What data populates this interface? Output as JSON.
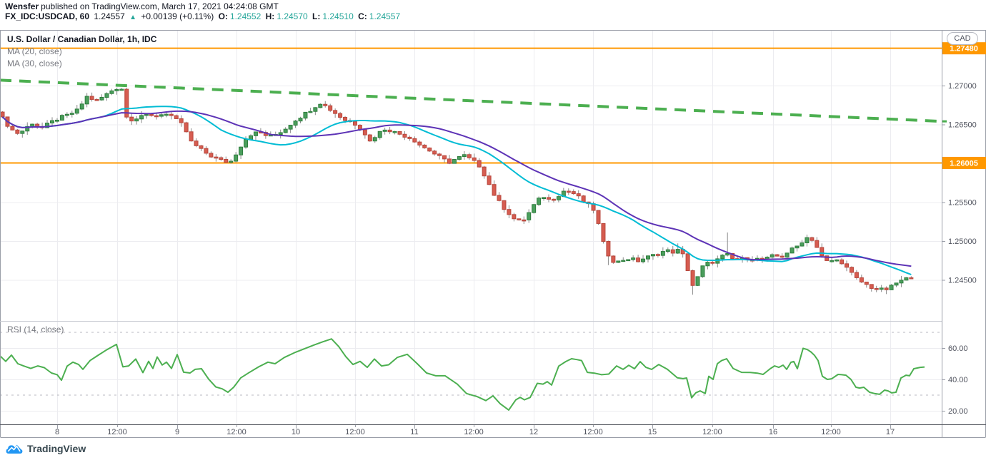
{
  "header": {
    "author": "Wensfer",
    "published": "published on TradingView.com, March 17, 2021 04:24:08 GMT",
    "symbol": "FX_IDC:USDCAD, 60",
    "last_price": "1.24557",
    "up_arrow": "▲",
    "change": "+0.00139 (+0.11%)",
    "ohlc": [
      {
        "label": "O:",
        "value": "1.24552"
      },
      {
        "label": "H:",
        "value": "1.24570"
      },
      {
        "label": "L:",
        "value": "1.24510"
      },
      {
        "label": "C:",
        "value": "1.24557"
      }
    ]
  },
  "price_axis": {
    "currency": "CAD"
  },
  "footer": {
    "brand": "TradingView"
  },
  "colors": {
    "up_fill": "#4a9e5c",
    "up_border": "#2e7d3d",
    "down_fill": "#d65c50",
    "down_border": "#b7473c",
    "wick": "#8a8a8a",
    "ma20": "#00bcd4",
    "ma30": "#5d33b6",
    "trendline": "#4caf50",
    "level": "#ff9800",
    "rsi": "#4caf50",
    "grid": "#ececf0",
    "frame": "#9a9ea8",
    "axis_text": "#50535e",
    "band_dash": "#b8bac1",
    "teal": "#26a69a",
    "logo_blue": "#2196f3"
  },
  "chart_data": [
    {
      "type": "candlestick",
      "title": "U.S. Dollar / Canadian Dollar, 1h, IDC",
      "legend": [
        "MA (20, close)",
        "MA (30, close)"
      ],
      "currency": "CAD",
      "ylim": [
        1.23972,
        1.27716
      ],
      "y_ticks": [
        {
          "label": "1.27000",
          "price": 1.27
        },
        {
          "label": "1.26500",
          "price": 1.265
        },
        {
          "label": "1.25500",
          "price": 1.255
        },
        {
          "label": "1.25000",
          "price": 1.25
        },
        {
          "label": "1.24500",
          "price": 1.245
        }
      ],
      "levels": [
        {
          "label": "1.27480",
          "price": 1.2748
        },
        {
          "label": "1.26005",
          "price": 1.26005
        }
      ],
      "trendline": {
        "from": [
          0,
          1.2707
        ],
        "to": [
          1318,
          1.2654
        ],
        "style": "dashed"
      },
      "moving_averages": [
        {
          "name": "MA (20, close)",
          "period": 20
        },
        {
          "name": "MA (30, close)",
          "period": 30
        }
      ],
      "bars": 184,
      "bar_step": 6.95,
      "close_path": [
        [
          0,
          1.2662
        ],
        [
          10,
          1.265
        ],
        [
          22,
          1.2638
        ],
        [
          32,
          1.2642
        ],
        [
          45,
          1.2652
        ],
        [
          58,
          1.2645
        ],
        [
          70,
          1.2652
        ],
        [
          82,
          1.2658
        ],
        [
          95,
          1.2662
        ],
        [
          108,
          1.2668
        ],
        [
          122,
          1.2686
        ],
        [
          135,
          1.268
        ],
        [
          148,
          1.2688
        ],
        [
          160,
          1.2696
        ],
        [
          170,
          1.2698
        ],
        [
          176,
          1.266
        ],
        [
          186,
          1.2656
        ],
        [
          198,
          1.2662
        ],
        [
          210,
          1.266
        ],
        [
          222,
          1.2662
        ],
        [
          235,
          1.2665
        ],
        [
          247,
          1.2655
        ],
        [
          257,
          1.2648
        ],
        [
          267,
          1.2628
        ],
        [
          280,
          1.2618
        ],
        [
          294,
          1.261
        ],
        [
          308,
          1.2604
        ],
        [
          322,
          1.2601
        ],
        [
          332,
          1.2615
        ],
        [
          342,
          1.263
        ],
        [
          352,
          1.2638
        ],
        [
          364,
          1.264
        ],
        [
          376,
          1.2634
        ],
        [
          388,
          1.2638
        ],
        [
          400,
          1.2645
        ],
        [
          412,
          1.2655
        ],
        [
          424,
          1.2662
        ],
        [
          436,
          1.267
        ],
        [
          448,
          1.2678
        ],
        [
          458,
          1.2672
        ],
        [
          470,
          1.2664
        ],
        [
          482,
          1.2656
        ],
        [
          495,
          1.2652
        ],
        [
          508,
          1.2642
        ],
        [
          518,
          1.2628
        ],
        [
          528,
          1.2638
        ],
        [
          540,
          1.2645
        ],
        [
          552,
          1.264
        ],
        [
          565,
          1.2636
        ],
        [
          578,
          1.2631
        ],
        [
          590,
          1.2622
        ],
        [
          602,
          1.2616
        ],
        [
          615,
          1.2608
        ],
        [
          628,
          1.2601
        ],
        [
          638,
          1.2606
        ],
        [
          650,
          1.261
        ],
        [
          660,
          1.2604
        ],
        [
          670,
          1.2598
        ],
        [
          680,
          1.2582
        ],
        [
          690,
          1.2562
        ],
        [
          700,
          1.2548
        ],
        [
          710,
          1.2538
        ],
        [
          720,
          1.2528
        ],
        [
          730,
          1.2524
        ],
        [
          740,
          1.2536
        ],
        [
          750,
          1.255
        ],
        [
          760,
          1.2558
        ],
        [
          770,
          1.2552
        ],
        [
          780,
          1.2558
        ],
        [
          790,
          1.2565
        ],
        [
          800,
          1.2563
        ],
        [
          810,
          1.2556
        ],
        [
          820,
          1.2548
        ],
        [
          830,
          1.2542
        ],
        [
          838,
          1.252
        ],
        [
          846,
          1.2492
        ],
        [
          854,
          1.2478
        ],
        [
          862,
          1.2472
        ],
        [
          872,
          1.2476
        ],
        [
          882,
          1.2478
        ],
        [
          892,
          1.2474
        ],
        [
          902,
          1.2478
        ],
        [
          912,
          1.2481
        ],
        [
          922,
          1.2484
        ],
        [
          932,
          1.2488
        ],
        [
          942,
          1.2486
        ],
        [
          952,
          1.2489
        ],
        [
          960,
          1.2474
        ],
        [
          968,
          1.2441
        ],
        [
          976,
          1.2452
        ],
        [
          984,
          1.2468
        ],
        [
          992,
          1.2472
        ],
        [
          1000,
          1.2474
        ],
        [
          1008,
          1.2478
        ],
        [
          1016,
          1.2484
        ],
        [
          1024,
          1.2477
        ],
        [
          1034,
          1.2476
        ],
        [
          1046,
          1.2478
        ],
        [
          1058,
          1.2477
        ],
        [
          1070,
          1.2476
        ],
        [
          1082,
          1.2481
        ],
        [
          1094,
          1.248
        ],
        [
          1104,
          1.2487
        ],
        [
          1114,
          1.2492
        ],
        [
          1124,
          1.2501
        ],
        [
          1132,
          1.2506
        ],
        [
          1140,
          1.2499
        ],
        [
          1148,
          1.2482
        ],
        [
          1158,
          1.2473
        ],
        [
          1168,
          1.2476
        ],
        [
          1178,
          1.2473
        ],
        [
          1188,
          1.2462
        ],
        [
          1198,
          1.2452
        ],
        [
          1208,
          1.2446
        ],
        [
          1218,
          1.2441
        ],
        [
          1228,
          1.2438
        ],
        [
          1238,
          1.2437
        ],
        [
          1246,
          1.244
        ],
        [
          1254,
          1.2446
        ],
        [
          1262,
          1.2449
        ],
        [
          1270,
          1.2452
        ],
        [
          1277,
          1.24557
        ]
      ],
      "spikes": [
        {
          "x": 848,
          "low": 1.2469
        },
        {
          "x": 952,
          "high": 1.2497
        },
        {
          "x": 968,
          "low": 1.2431
        },
        {
          "x": 1016,
          "high": 1.2511
        }
      ],
      "x_axis": {
        "labels": [
          {
            "text": "8",
            "x": 80,
            "major": true
          },
          {
            "text": "12:00",
            "x": 164,
            "major": false
          },
          {
            "text": "9",
            "x": 248,
            "major": true
          },
          {
            "text": "12:00",
            "x": 331,
            "major": false
          },
          {
            "text": "10",
            "x": 414,
            "major": true
          },
          {
            "text": "12:00",
            "x": 497,
            "major": false
          },
          {
            "text": "11",
            "x": 580,
            "major": true
          },
          {
            "text": "12:00",
            "x": 663,
            "major": false
          },
          {
            "text": "12",
            "x": 747,
            "major": true
          },
          {
            "text": "12:00",
            "x": 830,
            "major": false
          },
          {
            "text": "15",
            "x": 913,
            "major": true
          },
          {
            "text": "12:00",
            "x": 997,
            "major": false
          },
          {
            "text": "16",
            "x": 1082,
            "major": true
          },
          {
            "text": "12:00",
            "x": 1163,
            "major": false
          },
          {
            "text": "17",
            "x": 1246,
            "major": true
          }
        ]
      }
    },
    {
      "type": "line",
      "label": "RSI (14, close)",
      "ylim": [
        11.8,
        77.3
      ],
      "y_ticks": [
        {
          "label": "60.00",
          "value": 60
        },
        {
          "label": "40.00",
          "value": 40
        },
        {
          "label": "20.00",
          "value": 20
        }
      ],
      "bands": [
        70,
        30
      ],
      "points": [
        [
          0,
          55
        ],
        [
          8,
          51.5
        ],
        [
          16,
          55.5
        ],
        [
          25,
          50
        ],
        [
          33,
          48.6
        ],
        [
          43,
          47
        ],
        [
          53,
          48.6
        ],
        [
          62,
          47.5
        ],
        [
          72,
          44.1
        ],
        [
          80,
          43
        ],
        [
          86,
          39.5
        ],
        [
          94,
          48.5
        ],
        [
          102,
          51
        ],
        [
          110,
          49.5
        ],
        [
          116,
          46.4
        ],
        [
          126,
          52
        ],
        [
          136,
          55
        ],
        [
          148,
          58.5
        ],
        [
          163,
          62.3
        ],
        [
          172,
          48
        ],
        [
          180,
          48.6
        ],
        [
          190,
          53
        ],
        [
          200,
          44.3
        ],
        [
          208,
          51.5
        ],
        [
          214,
          47
        ],
        [
          220,
          54.3
        ],
        [
          227,
          49.2
        ],
        [
          233,
          51
        ],
        [
          240,
          47
        ],
        [
          248,
          55.8
        ],
        [
          257,
          44.6
        ],
        [
          266,
          44.1
        ],
        [
          273,
          46.4
        ],
        [
          282,
          46.8
        ],
        [
          292,
          40.2
        ],
        [
          302,
          35.2
        ],
        [
          311,
          34
        ],
        [
          319,
          31.8
        ],
        [
          327,
          35
        ],
        [
          337,
          41
        ],
        [
          348,
          44.2
        ],
        [
          362,
          48
        ],
        [
          375,
          51
        ],
        [
          385,
          50
        ],
        [
          398,
          54
        ],
        [
          412,
          57
        ],
        [
          426,
          59.5
        ],
        [
          440,
          62
        ],
        [
          452,
          64
        ],
        [
          464,
          65.8
        ],
        [
          474,
          61
        ],
        [
          484,
          54.5
        ],
        [
          494,
          49.5
        ],
        [
          504,
          51.5
        ],
        [
          514,
          47.7
        ],
        [
          524,
          53
        ],
        [
          534,
          48.6
        ],
        [
          544,
          49.3
        ],
        [
          556,
          54
        ],
        [
          570,
          56
        ],
        [
          584,
          50
        ],
        [
          597,
          44.1
        ],
        [
          610,
          42.3
        ],
        [
          623,
          42.3
        ],
        [
          640,
          37
        ],
        [
          653,
          31
        ],
        [
          668,
          29
        ],
        [
          680,
          26.5
        ],
        [
          690,
          29.5
        ],
        [
          700,
          24.5
        ],
        [
          712,
          20.5
        ],
        [
          722,
          27
        ],
        [
          728,
          28.6
        ],
        [
          734,
          27
        ],
        [
          742,
          28.5
        ],
        [
          752,
          37.5
        ],
        [
          760,
          37
        ],
        [
          766,
          38.6
        ],
        [
          772,
          36.4
        ],
        [
          782,
          48.5
        ],
        [
          792,
          51.4
        ],
        [
          800,
          53.2
        ],
        [
          808,
          52.6
        ],
        [
          814,
          52
        ],
        [
          822,
          44.5
        ],
        [
          832,
          44
        ],
        [
          842,
          43
        ],
        [
          852,
          43.4
        ],
        [
          863,
          48.6
        ],
        [
          872,
          46.4
        ],
        [
          880,
          49
        ],
        [
          888,
          46.8
        ],
        [
          896,
          51.3
        ],
        [
          904,
          47.7
        ],
        [
          912,
          46.4
        ],
        [
          922,
          49.5
        ],
        [
          934,
          46.5
        ],
        [
          948,
          41
        ],
        [
          956,
          40.5
        ],
        [
          961,
          40.9
        ],
        [
          968,
          28.3
        ],
        [
          974,
          31.5
        ],
        [
          980,
          32.7
        ],
        [
          987,
          31
        ],
        [
          992,
          42
        ],
        [
          998,
          40
        ],
        [
          1004,
          50
        ],
        [
          1010,
          52
        ],
        [
          1017,
          53.2
        ],
        [
          1026,
          47
        ],
        [
          1038,
          44.5
        ],
        [
          1050,
          44.4
        ],
        [
          1060,
          44
        ],
        [
          1068,
          43.2
        ],
        [
          1078,
          46.8
        ],
        [
          1084,
          48.6
        ],
        [
          1090,
          47.7
        ],
        [
          1096,
          49.1
        ],
        [
          1101,
          46.4
        ],
        [
          1107,
          50.9
        ],
        [
          1111,
          51.4
        ],
        [
          1116,
          46.8
        ],
        [
          1124,
          59.8
        ],
        [
          1130,
          59
        ],
        [
          1135,
          57.5
        ],
        [
          1140,
          55.3
        ],
        [
          1145,
          52
        ],
        [
          1151,
          42
        ],
        [
          1158,
          40
        ],
        [
          1164,
          40.4
        ],
        [
          1173,
          43.2
        ],
        [
          1178,
          43
        ],
        [
          1184,
          42.7
        ],
        [
          1191,
          40
        ],
        [
          1198,
          35
        ],
        [
          1203,
          34.5
        ],
        [
          1209,
          35
        ],
        [
          1217,
          31.8
        ],
        [
          1224,
          31
        ],
        [
          1231,
          30.5
        ],
        [
          1238,
          33.2
        ],
        [
          1243,
          32.7
        ],
        [
          1248,
          31.4
        ],
        [
          1254,
          31.8
        ],
        [
          1261,
          40.9
        ],
        [
          1268,
          42.7
        ],
        [
          1273,
          42.3
        ],
        [
          1279,
          46.8
        ],
        [
          1288,
          47.7
        ],
        [
          1294,
          47.9
        ]
      ]
    }
  ]
}
